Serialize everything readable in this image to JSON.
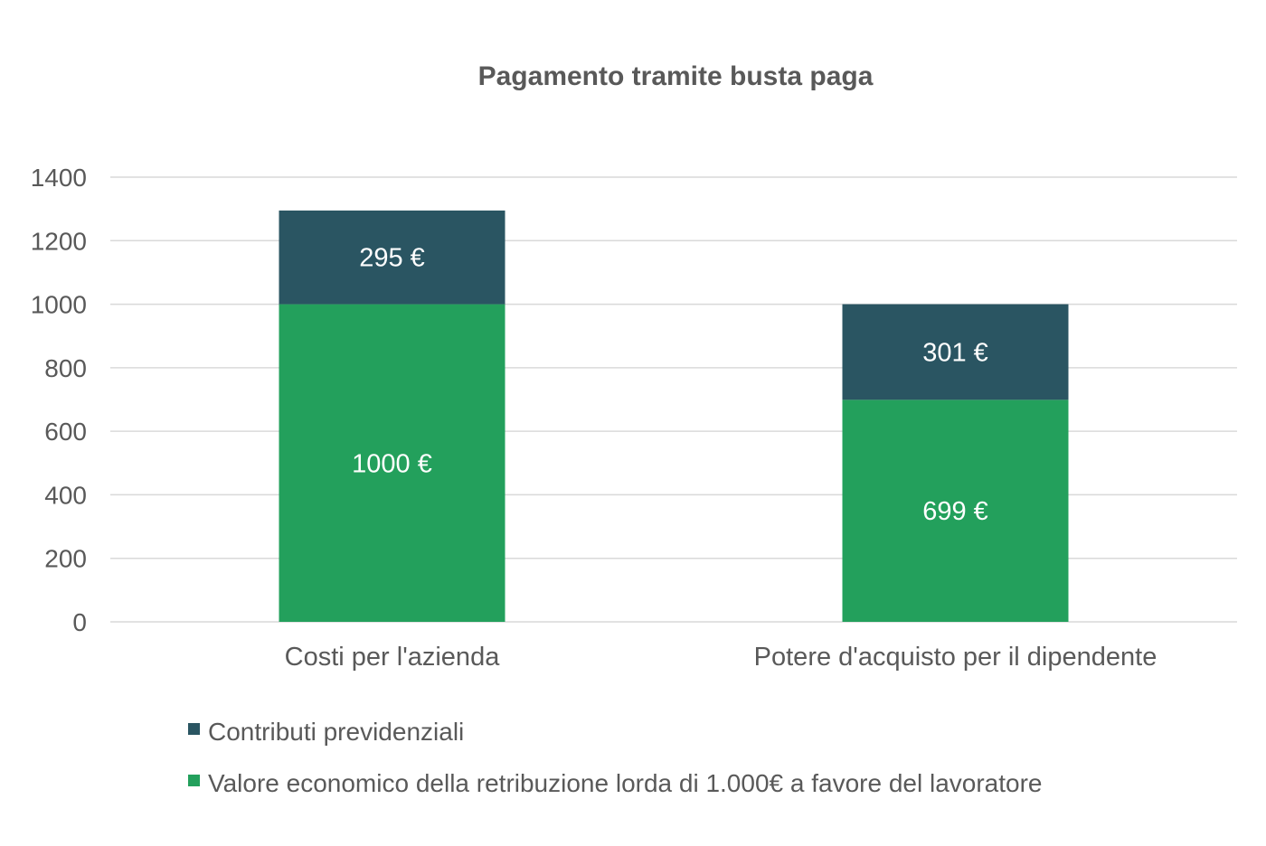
{
  "chart_data": {
    "type": "bar",
    "stacked": true,
    "title": "Pagamento tramite busta paga",
    "xlabel": "",
    "ylabel": "",
    "categories": [
      "Costi per l'azienda",
      "Potere d'acquisto per il dipendente"
    ],
    "ylim": [
      0,
      1400
    ],
    "yticks": [
      0,
      200,
      400,
      600,
      800,
      1000,
      1200,
      1400
    ],
    "grid": true,
    "legend_position": "bottom-left",
    "series": [
      {
        "name": "Valore economico della retribuzione lorda di 1.000€ a favore del lavoratore",
        "color": "#23a05c",
        "values": [
          1000,
          699
        ],
        "labels": [
          "1000 €",
          "699 €"
        ]
      },
      {
        "name": "Contributi previdenziali",
        "color": "#2a5562",
        "values": [
          295,
          301
        ],
        "labels": [
          "295 €",
          "301 €"
        ]
      }
    ],
    "legend_order": [
      1,
      0
    ]
  }
}
